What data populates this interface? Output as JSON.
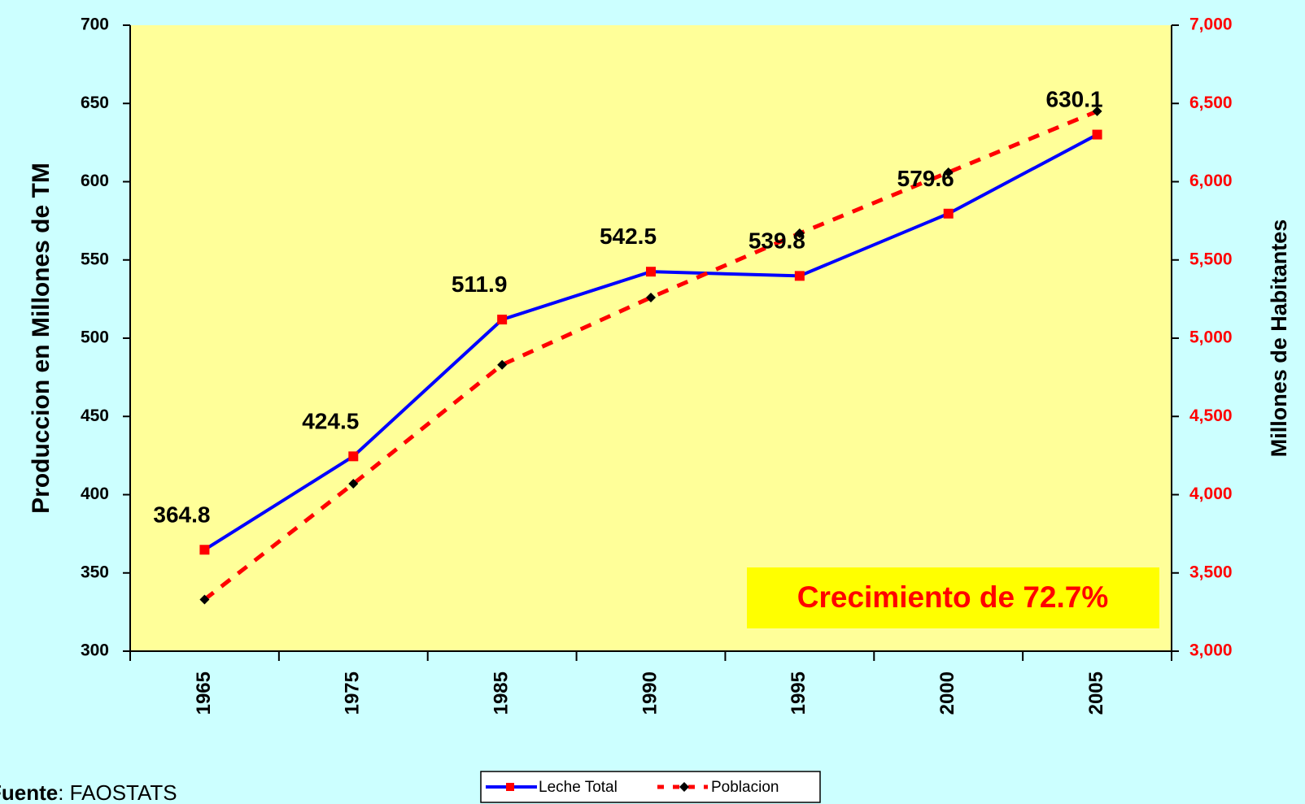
{
  "chart_data": {
    "type": "line",
    "categories": [
      "1965",
      "1975",
      "1985",
      "1990",
      "1995",
      "2000",
      "2005"
    ],
    "series": [
      {
        "name": "Leche Total",
        "color": "#0000ff",
        "marker_color": "#ff0000",
        "values": [
          364.8,
          424.5,
          511.9,
          542.5,
          539.8,
          579.6,
          630.1
        ],
        "data_labels": true
      },
      {
        "name": "Poblacion",
        "color": "#ff0000",
        "marker_color": "#000000",
        "dashed": true,
        "axis": "y2",
        "values": [
          3330,
          4070,
          4830,
          5260,
          5670,
          6060,
          6450
        ],
        "data_labels": false
      }
    ],
    "ylabel": "Produccion en Millones de TM",
    "y2label": "Millones de Habitantes",
    "ylim": [
      300,
      700
    ],
    "yticks": [
      300,
      350,
      400,
      450,
      500,
      550,
      600,
      650,
      700
    ],
    "y2lim": [
      3000,
      7000
    ],
    "y2ticks": [
      {
        "value": 3000,
        "label": "3,000"
      },
      {
        "value": 3500,
        "label": "3,500"
      },
      {
        "value": 4000,
        "label": "4,000"
      },
      {
        "value": 4500,
        "label": "4,500"
      },
      {
        "value": 5000,
        "label": "5,000"
      },
      {
        "value": 5500,
        "label": "5,500"
      },
      {
        "value": 6000,
        "label": "6,000"
      },
      {
        "value": 6500,
        "label": "6,500"
      },
      {
        "value": 7000,
        "label": "7,000"
      }
    ],
    "annotation": "Crecimiento de 72.7%",
    "source_label": "Fuente",
    "source": ": FAOSTATS",
    "legend": "bottom",
    "grid": false
  }
}
